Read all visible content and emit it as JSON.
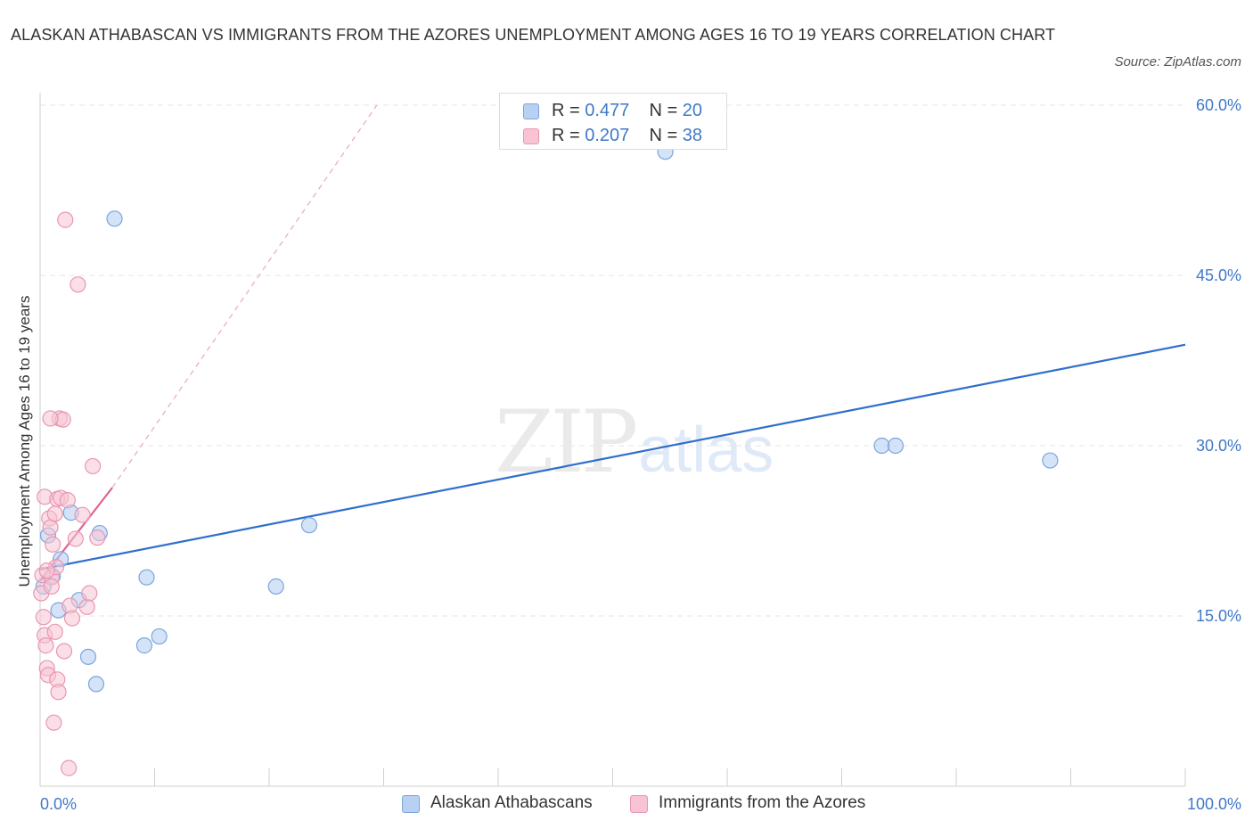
{
  "title": "ALASKAN ATHABASCAN VS IMMIGRANTS FROM THE AZORES UNEMPLOYMENT AMONG AGES 16 TO 19 YEARS CORRELATION CHART",
  "source": "Source: ZipAtlas.com",
  "watermark": {
    "zip": "ZIP",
    "atlas": "atlas"
  },
  "legend_stats": {
    "r_label": "R =",
    "n_label": "N =",
    "series1": {
      "r": "0.477",
      "n": "20"
    },
    "series2": {
      "r": "0.207",
      "n": "38"
    }
  },
  "colors": {
    "blue_fill": "#b8d0f2",
    "blue_stroke": "#7aa6dc",
    "blue_line": "#2f6fcc",
    "pink_fill": "#f8c4d4",
    "pink_stroke": "#e996b2",
    "pink_line": "#e0628f",
    "axis_text": "#3f78c8",
    "grid": "#e6e6e6"
  },
  "chart_data": {
    "type": "scatter",
    "title": "ALASKAN ATHABASCAN VS IMMIGRANTS FROM THE AZORES UNEMPLOYMENT AMONG AGES 16 TO 19 YEARS CORRELATION CHART",
    "xlabel": "",
    "ylabel": "Unemployment Among Ages 16 to 19 years",
    "xlim": [
      0,
      100
    ],
    "ylim": [
      0,
      60
    ],
    "x_tick_labels": [
      "0.0%",
      "100.0%"
    ],
    "y_ticks": [
      15,
      30,
      45,
      60
    ],
    "y_tick_labels": [
      "15.0%",
      "30.0%",
      "45.0%",
      "60.0%"
    ],
    "grid": true,
    "series": [
      {
        "name": "Alaskan Athabascans",
        "color": "#b8d0f2",
        "r": 0.477,
        "n": 20,
        "points": [
          [
            0.3,
            17.6
          ],
          [
            0.7,
            22.1
          ],
          [
            1.6,
            15.5
          ],
          [
            1.8,
            20.0
          ],
          [
            2.7,
            24.1
          ],
          [
            3.4,
            16.4
          ],
          [
            4.2,
            11.4
          ],
          [
            4.9,
            9.0
          ],
          [
            5.2,
            22.3
          ],
          [
            6.5,
            50.0
          ],
          [
            9.1,
            12.4
          ],
          [
            9.3,
            18.4
          ],
          [
            10.4,
            13.2
          ],
          [
            20.6,
            17.6
          ],
          [
            23.5,
            23.0
          ],
          [
            54.6,
            55.9
          ],
          [
            73.5,
            30.0
          ],
          [
            74.7,
            30.0
          ],
          [
            88.2,
            28.7
          ],
          [
            1.1,
            18.5
          ]
        ],
        "trend": {
          "x0": 0,
          "y0": 19.1,
          "x1": 100,
          "y1": 38.9
        }
      },
      {
        "name": "Immigrants from the Azores",
        "color": "#f8c4d4",
        "r": 0.207,
        "n": 38,
        "points": [
          [
            0.1,
            17.0
          ],
          [
            0.2,
            18.6
          ],
          [
            0.3,
            14.9
          ],
          [
            0.4,
            13.3
          ],
          [
            0.5,
            12.4
          ],
          [
            0.6,
            10.4
          ],
          [
            0.4,
            25.5
          ],
          [
            0.7,
            9.8
          ],
          [
            0.8,
            23.6
          ],
          [
            0.9,
            22.8
          ],
          [
            1.0,
            18.4
          ],
          [
            1.1,
            21.3
          ],
          [
            1.2,
            5.6
          ],
          [
            1.3,
            13.6
          ],
          [
            1.4,
            19.3
          ],
          [
            1.5,
            9.4
          ],
          [
            1.6,
            8.3
          ],
          [
            1.5,
            25.3
          ],
          [
            1.7,
            32.4
          ],
          [
            1.8,
            25.4
          ],
          [
            2.0,
            32.3
          ],
          [
            2.1,
            11.9
          ],
          [
            2.2,
            49.9
          ],
          [
            2.4,
            25.2
          ],
          [
            2.5,
            1.6
          ],
          [
            2.6,
            15.9
          ],
          [
            2.8,
            14.8
          ],
          [
            3.1,
            21.8
          ],
          [
            3.3,
            44.2
          ],
          [
            3.7,
            23.9
          ],
          [
            4.1,
            15.8
          ],
          [
            4.3,
            17.0
          ],
          [
            4.6,
            28.2
          ],
          [
            5.0,
            21.9
          ],
          [
            0.9,
            32.4
          ],
          [
            0.6,
            19.0
          ],
          [
            1.0,
            17.6
          ],
          [
            1.3,
            24.0
          ]
        ],
        "trend": {
          "x0": 0,
          "y0": 18.1,
          "x1": 6.3,
          "y1": 26.3
        },
        "trend_extension": {
          "x0": 6.3,
          "y0": 26.3,
          "x1": 29.4,
          "y1": 60
        }
      }
    ]
  }
}
